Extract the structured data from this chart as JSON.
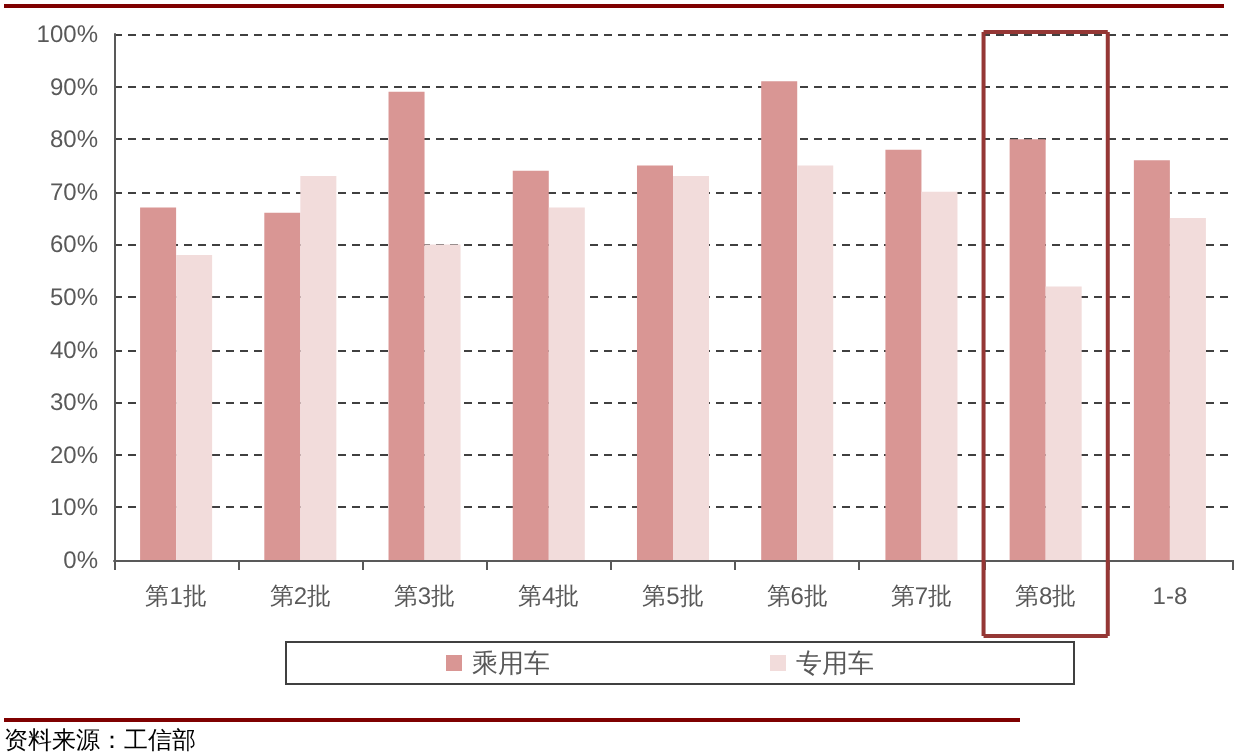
{
  "chart_data": {
    "type": "bar",
    "categories": [
      "第1批",
      "第2批",
      "第3批",
      "第4批",
      "第5批",
      "第6批",
      "第7批",
      "第8批",
      "1-8"
    ],
    "series": [
      {
        "name": "乘用车",
        "color": "#d99694",
        "values": [
          67,
          66,
          89,
          74,
          75,
          91,
          78,
          80,
          76
        ]
      },
      {
        "name": "专用车",
        "color": "#f2dcdb",
        "values": [
          58,
          73,
          60,
          67,
          73,
          75,
          70,
          52,
          65
        ]
      }
    ],
    "ylim": [
      0,
      100
    ],
    "yticks": [
      {
        "value": 0,
        "label": "0%"
      },
      {
        "value": 10,
        "label": "10%"
      },
      {
        "value": 20,
        "label": "20%"
      },
      {
        "value": 30,
        "label": "30%"
      },
      {
        "value": 40,
        "label": "40%"
      },
      {
        "value": 50,
        "label": "50%"
      },
      {
        "value": 60,
        "label": "60%"
      },
      {
        "value": 70,
        "label": "70%"
      },
      {
        "value": 80,
        "label": "80%"
      },
      {
        "value": 90,
        "label": "90%"
      },
      {
        "value": 100,
        "label": "100%"
      }
    ],
    "grid": "y",
    "legend": "bottom",
    "annotations": [
      "资料来源：工信部"
    ]
  }
}
